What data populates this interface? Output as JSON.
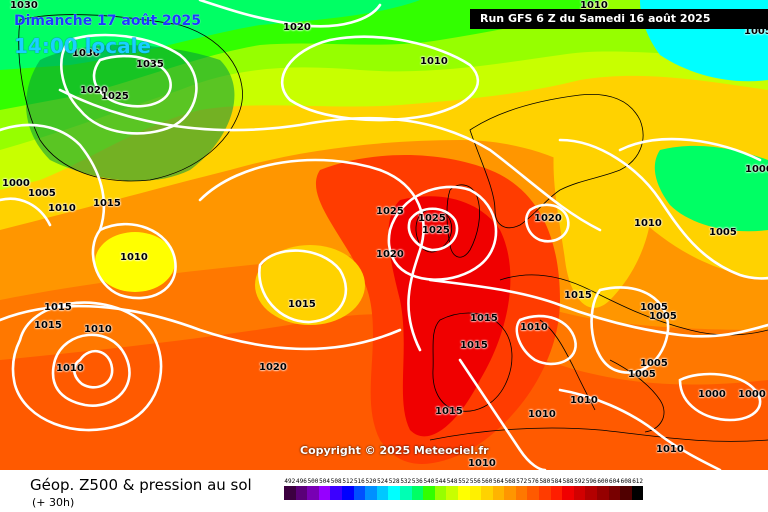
{
  "header": {
    "date_title": "Dimanche 17 août 2025",
    "time_title": "14:00 locale",
    "run_banner": "Run GFS 6 Z du Samedi 16 août 2025"
  },
  "copyright": "Copyright © 2025 Meteociel.fr",
  "footer": {
    "product_title": "Géop. Z500 & pression au sol",
    "product_sub": "(+ 30h)"
  },
  "scale": {
    "values": [
      "492",
      "496",
      "500",
      "504",
      "508",
      "512",
      "516",
      "520",
      "524",
      "528",
      "532",
      "536",
      "540",
      "544",
      "548",
      "552",
      "556",
      "560",
      "564",
      "568",
      "572",
      "576",
      "580",
      "584",
      "588",
      "592",
      "596",
      "600",
      "604",
      "608",
      "612"
    ],
    "colors": [
      "#3c0040",
      "#5a0078",
      "#7800b4",
      "#9600ff",
      "#3c00ff",
      "#0000ff",
      "#0050ff",
      "#0090ff",
      "#00c8ff",
      "#00ffff",
      "#00ffb4",
      "#00ff64",
      "#32ff00",
      "#96ff00",
      "#c8ff00",
      "#ffff00",
      "#fff000",
      "#ffd200",
      "#ffb400",
      "#ff9600",
      "#ff7800",
      "#ff5a00",
      "#ff3c00",
      "#ff1e00",
      "#f00000",
      "#d20000",
      "#b40000",
      "#960000",
      "#780000",
      "#500000",
      "#000000"
    ]
  },
  "isobar_labels": [
    "1030",
    "1020",
    "1010",
    "1005",
    "1030",
    "1035",
    "1020",
    "1025",
    "1000",
    "1005",
    "1010",
    "1015",
    "1025",
    "1025",
    "1025",
    "1020",
    "1020",
    "1010",
    "1005",
    "1000",
    "1010",
    "1015",
    "1010",
    "1015",
    "1010",
    "1015",
    "1005",
    "1005",
    "1015",
    "1020",
    "1015",
    "1005",
    "1005",
    "1015",
    "1010",
    "1000",
    "1000",
    "1010",
    "1015",
    "1010",
    "1010",
    "1010",
    "1005"
  ],
  "colors": {
    "isobar_line": "#ffffff",
    "coastline": "#000000",
    "banner_bg": "#000000"
  }
}
